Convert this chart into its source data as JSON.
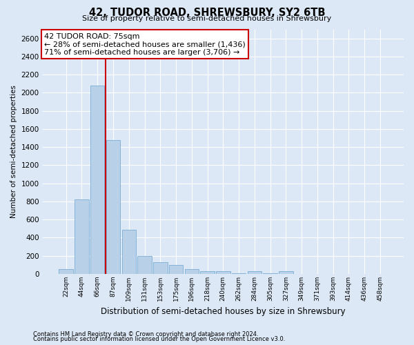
{
  "title": "42, TUDOR ROAD, SHREWSBURY, SY2 6TB",
  "subtitle": "Size of property relative to semi-detached houses in Shrewsbury",
  "xlabel": "Distribution of semi-detached houses by size in Shrewsbury",
  "ylabel": "Number of semi-detached properties",
  "footnote1": "Contains HM Land Registry data © Crown copyright and database right 2024.",
  "footnote2": "Contains public sector information licensed under the Open Government Licence v3.0.",
  "annotation_title": "42 TUDOR ROAD: 75sqm",
  "annotation_line1": "← 28% of semi-detached houses are smaller (1,436)",
  "annotation_line2": "71% of semi-detached houses are larger (3,706) →",
  "bar_categories": [
    "22sqm",
    "44sqm",
    "66sqm",
    "87sqm",
    "109sqm",
    "131sqm",
    "153sqm",
    "175sqm",
    "196sqm",
    "218sqm",
    "240sqm",
    "262sqm",
    "284sqm",
    "305sqm",
    "327sqm",
    "349sqm",
    "371sqm",
    "393sqm",
    "414sqm",
    "436sqm",
    "458sqm"
  ],
  "bar_values": [
    50,
    820,
    2080,
    1480,
    490,
    200,
    130,
    100,
    50,
    30,
    30,
    5,
    30,
    5,
    30,
    0,
    0,
    0,
    0,
    0,
    0
  ],
  "bar_color": "#b8d0e8",
  "bar_edge_color": "#7aadd4",
  "vline_x_index": 2.5,
  "vline_color": "#cc0000",
  "annotation_box_facecolor": "#ffffff",
  "annotation_box_edgecolor": "#cc0000",
  "bg_color": "#dce8f5",
  "plot_bg_color": "#dce8f5",
  "grid_color": "#ffffff",
  "ylim": [
    0,
    2700
  ],
  "yticks": [
    0,
    200,
    400,
    600,
    800,
    1000,
    1200,
    1400,
    1600,
    1800,
    2000,
    2200,
    2400,
    2600
  ]
}
